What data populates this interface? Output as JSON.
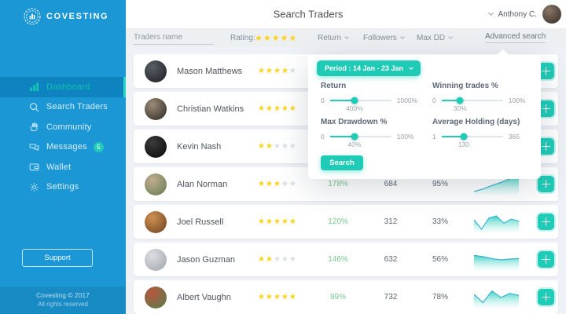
{
  "brand": {
    "name": "COVESTING",
    "copyright": "Covesting © 2017",
    "rights": "All rights reserved",
    "support_label": "Support"
  },
  "sidebar": {
    "items": [
      {
        "label": "Dashboard",
        "active": true
      },
      {
        "label": "Search Traders"
      },
      {
        "label": "Community"
      },
      {
        "label": "Messages",
        "badge": "5"
      },
      {
        "label": "Wallet"
      },
      {
        "label": "Settings"
      }
    ]
  },
  "header": {
    "title": "Search Traders",
    "user": {
      "name": "Anthony C.",
      "avatar_colors": [
        "#8a7668",
        "#40362e"
      ]
    }
  },
  "filters": {
    "name_placeholder": "Traders name",
    "rating_label": "Rating:",
    "rating_value": 5,
    "dropdowns": [
      {
        "label": "Return"
      },
      {
        "label": "Followers"
      },
      {
        "label": "Max DD"
      }
    ],
    "advanced_label": "Advanced search"
  },
  "advanced_search": {
    "period_label": "Period : 14 Jan - 23 Jan",
    "sliders": [
      {
        "label": "Return",
        "min": "0",
        "max": "1000%",
        "value": "400%",
        "percent": 40
      },
      {
        "label": "Winning trades %",
        "min": "0",
        "max": "100%",
        "value": "30%",
        "percent": 30
      },
      {
        "label": "Max Drawdown %",
        "min": "0",
        "max": "100%",
        "value": "40%",
        "percent": 40
      },
      {
        "label": "Average Holding (days)",
        "min": "1",
        "max": "365",
        "value": "130",
        "percent": 36
      }
    ],
    "search_label": "Search"
  },
  "traders": [
    {
      "name": "Mason Matthews",
      "rating": 4,
      "return": "",
      "followers": "",
      "win": "",
      "spark": null,
      "avatar_colors": [
        "#5a5f66",
        "#23262b"
      ]
    },
    {
      "name": "Christian Watkins",
      "rating": 5,
      "return": "",
      "followers": "",
      "win": "",
      "spark": null,
      "avatar_colors": [
        "#9c8c7a",
        "#3c352c"
      ]
    },
    {
      "name": "Kevin Nash",
      "rating": 2,
      "return": "",
      "followers": "",
      "win": "",
      "spark": null,
      "avatar_colors": [
        "#3a3a3a",
        "#101010"
      ]
    },
    {
      "name": "Alan Norman",
      "rating": 3,
      "return": "178%",
      "followers": "684",
      "win": "95%",
      "spark": [
        0.85,
        0.72,
        0.55,
        0.4,
        0.22,
        0.08
      ],
      "avatar_colors": [
        "#c0ad8e",
        "#72825c"
      ]
    },
    {
      "name": "Joel Russell",
      "rating": 5,
      "return": "120%",
      "followers": "312",
      "win": "33%",
      "spark": [
        0.38,
        0.85,
        0.3,
        0.2,
        0.55,
        0.35,
        0.45
      ],
      "avatar_colors": [
        "#cf9055",
        "#7c4c24"
      ]
    },
    {
      "name": "Jason Guzman",
      "rating": 2,
      "return": "146%",
      "followers": "632",
      "win": "56%",
      "spark": [
        0.28,
        0.34,
        0.44,
        0.5,
        0.46,
        0.44
      ],
      "avatar_colors": [
        "#dcdee1",
        "#a8adb4"
      ]
    },
    {
      "name": "Albert Vaughn",
      "rating": 5,
      "return": "99%",
      "followers": "732",
      "win": "78%",
      "spark": [
        0.35,
        0.75,
        0.18,
        0.5,
        0.3,
        0.4
      ],
      "avatar_colors": [
        "#b9563f",
        "#5f7a48"
      ]
    }
  ],
  "colors": {
    "accent_teal": "#1fccb7",
    "sidebar_blue": "#1b97d5",
    "active_item_blue": "#0d83bf",
    "active_text_teal": "#11c2ae",
    "star_gold": "#fdd21e",
    "positive_green": "#79c98f",
    "sparkline_stroke": "#38b2cf"
  }
}
